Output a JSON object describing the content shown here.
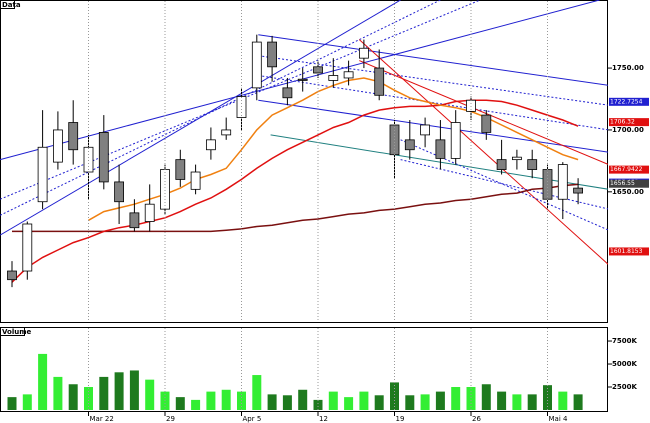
{
  "chart_data": [
    {
      "type": "candlestick",
      "title": "Data",
      "categories": [
        null,
        null,
        null,
        null,
        null,
        "Mar 22",
        null,
        null,
        null,
        null,
        "29",
        null,
        null,
        null,
        null,
        "Apr 5",
        null,
        null,
        null,
        null,
        "12",
        null,
        null,
        null,
        null,
        "19",
        null,
        null,
        null,
        null,
        "26",
        null,
        null,
        null,
        null,
        "Mai 4",
        null,
        null
      ],
      "open": [
        1586,
        1586,
        1642,
        1674,
        1706,
        1666,
        1698,
        1658,
        1633,
        1626,
        1636,
        1676,
        1652,
        1684,
        1696,
        1710,
        1734,
        1771,
        1734,
        1741,
        1751,
        1740,
        1742,
        1758,
        1750,
        1704,
        1692,
        1696,
        1692,
        1677,
        1715,
        1712,
        1676,
        1676,
        1676,
        1668,
        1644,
        1653
      ],
      "high": [
        1594,
        1626,
        1716,
        1715,
        1724,
        1696,
        1712,
        1672,
        1644,
        1656,
        1672,
        1684,
        1672,
        1702,
        1710,
        1734,
        1777,
        1776,
        1742,
        1750,
        1756,
        1758,
        1756,
        1773,
        1765,
        1708,
        1708,
        1710,
        1708,
        1716,
        1727,
        1716,
        1692,
        1684,
        1684,
        1672,
        1674,
        1661
      ],
      "low": [
        1573,
        1579,
        1636,
        1668,
        1672,
        1644,
        1652,
        1624,
        1618,
        1618,
        1632,
        1654,
        1648,
        1676,
        1692,
        1700,
        1724,
        1739,
        1720,
        1731,
        1742,
        1734,
        1736,
        1750,
        1724,
        1661,
        1676,
        1686,
        1668,
        1672,
        1708,
        1692,
        1664,
        1668,
        1661,
        1636,
        1628,
        1640
      ],
      "close": [
        1579,
        1624,
        1686,
        1700,
        1684,
        1686,
        1658,
        1642,
        1621,
        1640,
        1668,
        1660,
        1666,
        1692,
        1700,
        1727,
        1771,
        1751,
        1726,
        1740,
        1746,
        1744,
        1747,
        1766,
        1728,
        1680,
        1684,
        1704,
        1677,
        1706,
        1724,
        1698,
        1668,
        1678,
        1668,
        1644,
        1672,
        1649
      ],
      "up_color": "#ffffff",
      "down_color": "#808080",
      "ylim": [
        1544,
        1805
      ],
      "yticks": [
        {
          "value": 1750,
          "label": "1750.00"
        },
        {
          "value": 1700,
          "label": "1700.00"
        },
        {
          "value": 1650,
          "label": "1650.00"
        }
      ],
      "grid": "x",
      "series": [
        {
          "color": "#7a1010",
          "values": [
            1618,
            1618,
            1618,
            1618,
            1618,
            1618,
            1618,
            1618,
            1618,
            1618,
            1618,
            1618,
            1618,
            1618,
            1619,
            1620,
            1622,
            1623,
            1625,
            1627,
            1628,
            1630,
            1632,
            1633,
            1635,
            1636,
            1638,
            1640,
            1641,
            1643,
            1644,
            1646,
            1648,
            1649,
            1652,
            1653,
            1655,
            1656
          ]
        },
        {
          "color": "#e01010",
          "values": [
            1577,
            1589,
            1597,
            1603,
            1609,
            1613,
            1618,
            1621,
            1623,
            1626,
            1629,
            1634,
            1640,
            1645,
            1652,
            1660,
            1669,
            1677,
            1684,
            1690,
            1696,
            1702,
            1706,
            1712,
            1716,
            1718,
            1719,
            1719,
            1720,
            1723,
            1724,
            1724,
            1723,
            1720,
            1716,
            1712,
            1708,
            1703
          ]
        },
        {
          "color": "#f08010",
          "values": [
            null,
            null,
            null,
            null,
            null,
            1627,
            1634,
            1637,
            1640,
            1644,
            1648,
            1653,
            1660,
            1664,
            1669,
            1684,
            1700,
            1712,
            1718,
            1724,
            1731,
            1736,
            1740,
            1742,
            1739,
            1732,
            1726,
            1723,
            1720,
            1718,
            1715,
            1710,
            1704,
            1698,
            1692,
            1686,
            1680,
            1676
          ]
        }
      ],
      "trendlines": [
        {
          "color": "#2020d0",
          "style": "solid",
          "x": [
            -0.78,
            38.4
          ],
          "values": [
            1676,
            1805
          ]
        },
        {
          "color": "#2020d0",
          "style": "solid",
          "x": [
            -0.78,
            25.4
          ],
          "values": [
            1615,
            1805
          ]
        },
        {
          "color": "#2020d0",
          "style": "dotted",
          "x": [
            -0.78,
            30.6
          ],
          "values": [
            1644,
            1805
          ]
        },
        {
          "color": "#2020d0",
          "style": "dotted",
          "x": [
            -0.78,
            28.0
          ],
          "values": [
            1631,
            1805
          ]
        },
        {
          "color": "#2020d0",
          "style": "solid",
          "x": [
            16.1,
            39.0
          ],
          "values": [
            1777,
            1736
          ]
        },
        {
          "color": "#2020d0",
          "style": "solid",
          "x": [
            16.1,
            39.0
          ],
          "values": [
            1724,
            1682
          ]
        },
        {
          "color": "#2020d0",
          "style": "dotted",
          "x": [
            16.1,
            39.0
          ],
          "values": [
            1760,
            1720
          ]
        },
        {
          "color": "#2020d0",
          "style": "dotted",
          "x": [
            16.1,
            39.0
          ],
          "values": [
            1744,
            1700
          ]
        },
        {
          "color": "#208080",
          "style": "solid",
          "x": [
            16.9,
            39.0
          ],
          "values": [
            1696,
            1652
          ]
        },
        {
          "color": "#e01010",
          "style": "solid",
          "x": [
            22.7,
            39.0
          ],
          "values": [
            1773,
            1591
          ]
        },
        {
          "color": "#e01010",
          "style": "solid",
          "x": [
            22.7,
            39.0
          ],
          "values": [
            1756,
            1672
          ]
        },
        {
          "color": "#2020d0",
          "style": "dotted",
          "x": [
            25.4,
            39.0
          ],
          "values": [
            1692,
            1619
          ]
        },
        {
          "color": "#2020d0",
          "style": "dotted",
          "x": [
            25.4,
            39.0
          ],
          "values": [
            1676,
            1636
          ]
        }
      ],
      "price_tags": [
        {
          "value": 1722.7254,
          "color": "#2020d0"
        },
        {
          "value": 1706.32,
          "color": "#e01010"
        },
        {
          "value": 1657.452,
          "color": "#2020d0"
        },
        {
          "value": 1667.9422,
          "color": "#e01010"
        },
        {
          "value": 1656.55,
          "color": "#404040"
        },
        {
          "value": 1601.8153,
          "color": "#e01010"
        }
      ]
    },
    {
      "type": "bar",
      "title": "Volume",
      "values": [
        1400,
        1700,
        6100,
        3600,
        2800,
        2500,
        3600,
        4100,
        4300,
        3300,
        2000,
        1400,
        1100,
        2000,
        2200,
        2000,
        3800,
        1700,
        1600,
        2200,
        1100,
        2000,
        1400,
        2000,
        1600,
        3000,
        1600,
        1700,
        2000,
        2500,
        2500,
        2800,
        2000,
        1700,
        1700,
        2700,
        2000,
        1700
      ],
      "up_color": "#33ee33",
      "down_color": "#1e7a1e",
      "ylim": [
        0,
        8700
      ],
      "yticks": [
        {
          "value": 7500,
          "label": "7500K"
        },
        {
          "value": 5000,
          "label": "5000K"
        },
        {
          "value": 2500,
          "label": "2500K"
        }
      ]
    }
  ]
}
